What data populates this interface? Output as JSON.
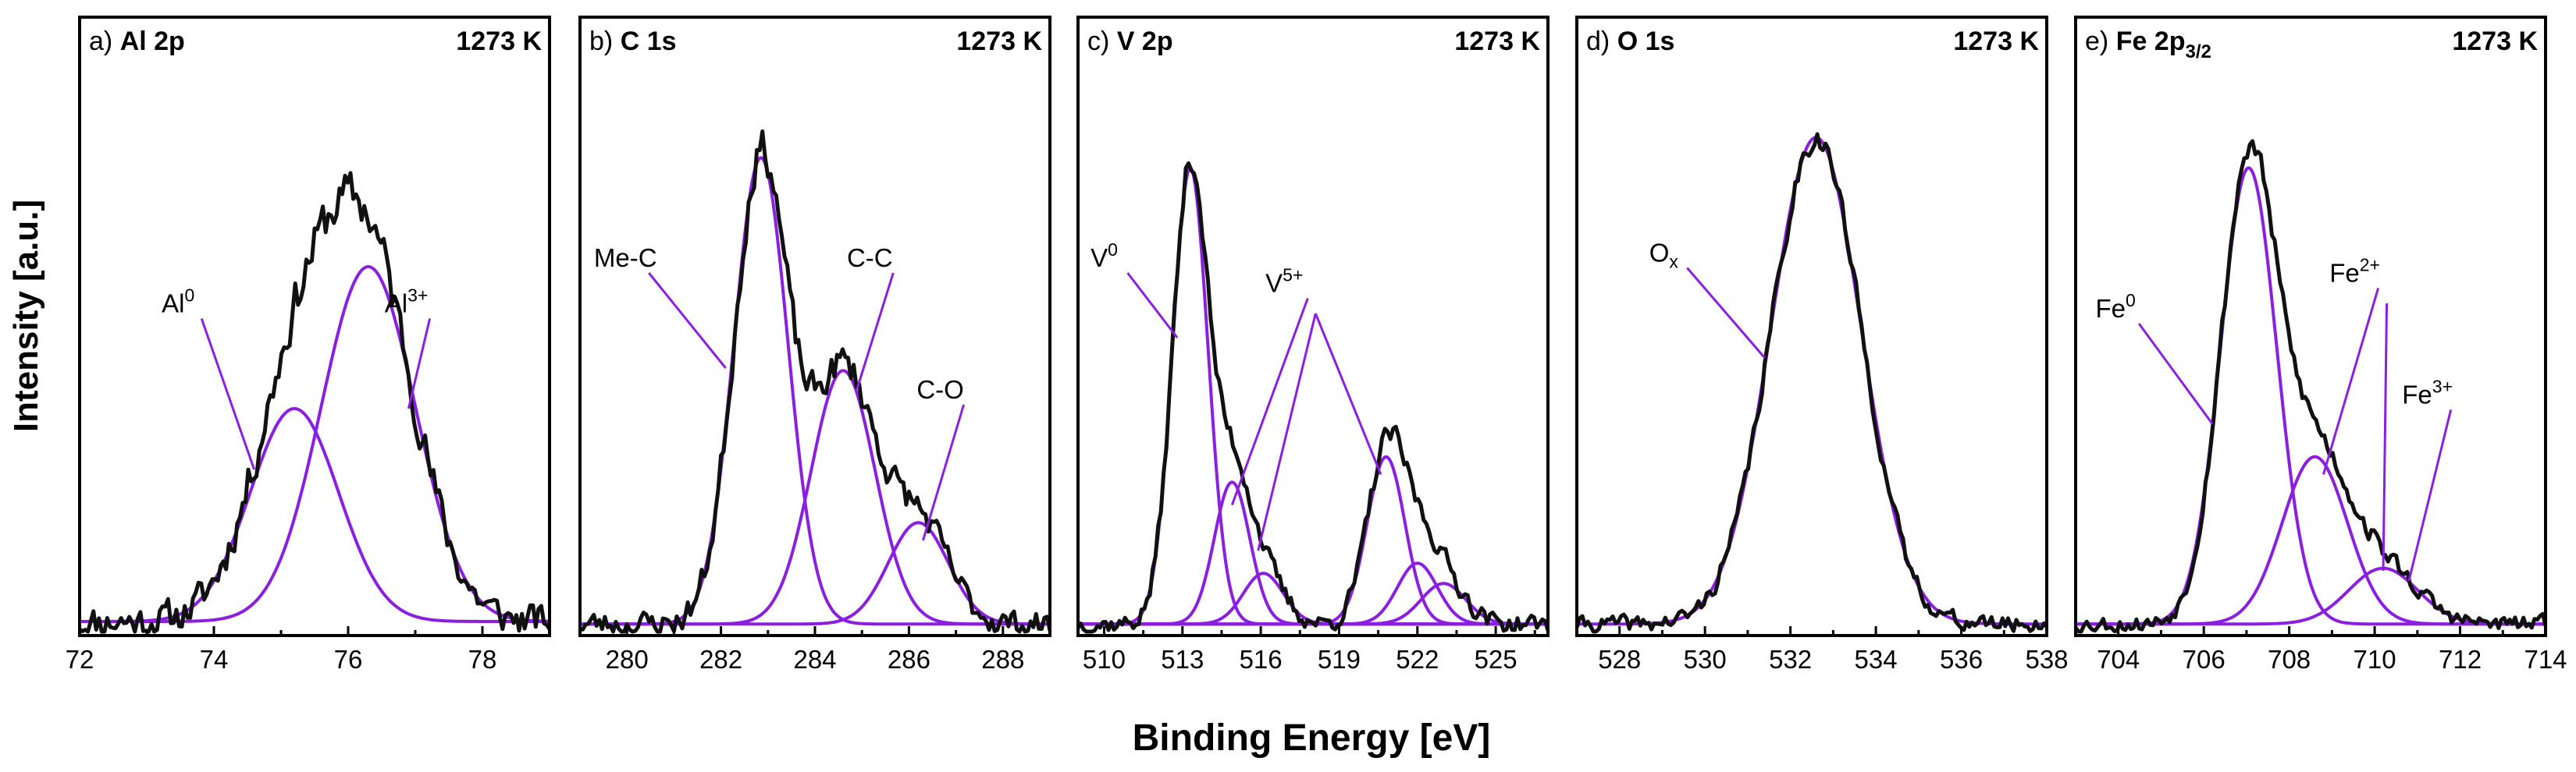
{
  "chart_data": {
    "type": "line",
    "xlabel": "Binding Energy [eV]",
    "ylabel": "Intensity [a.u.]",
    "series_colors": {
      "raw": "#111111",
      "fit": "#8a1fe0"
    },
    "panels": [
      {
        "id": "a",
        "label_prefix": "a)",
        "label_main": "Al 2p",
        "label_sub": "",
        "temperature": "1273 K",
        "xlim": [
          72,
          79
        ],
        "ylim": [
          0,
          1.0
        ],
        "xticks": [
          72,
          74,
          76,
          78
        ],
        "xtick_labels": [
          "72",
          "74",
          "76",
          "78"
        ],
        "noise_seed": 11,
        "noise_amp": 0.045,
        "baseline": 0.02,
        "components": [
          {
            "name": "Al",
            "sup": "0",
            "center": 75.2,
            "height": 0.42,
            "fwhm": 1.55
          },
          {
            "name": "Al",
            "sup": "3+",
            "center": 76.3,
            "height": 0.7,
            "fwhm": 1.65
          }
        ],
        "annotations": [
          {
            "name": "Al",
            "sup": "0",
            "text_x": 73.7,
            "text_y": 0.63,
            "target": [
              74.6,
              0.32
            ]
          },
          {
            "name": "Al",
            "sup": "3+",
            "text_x": 77.1,
            "text_y": 0.63,
            "target": [
              76.9,
              0.44
            ]
          }
        ]
      },
      {
        "id": "b",
        "label_prefix": "b)",
        "label_main": "C 1s",
        "label_sub": "",
        "temperature": "1273 K",
        "xlim": [
          279,
          289
        ],
        "ylim": [
          0,
          1.0
        ],
        "xticks": [
          280,
          282,
          284,
          286,
          288
        ],
        "xtick_labels": [
          "280",
          "282",
          "284",
          "286",
          "288"
        ],
        "noise_seed": 23,
        "noise_amp": 0.035,
        "baseline": 0.015,
        "components": [
          {
            "name": "Me-C",
            "sup": "",
            "center": 282.85,
            "height": 0.92,
            "fwhm": 1.35
          },
          {
            "name": "C-C",
            "sup": "",
            "center": 284.6,
            "height": 0.5,
            "fwhm": 1.6
          },
          {
            "name": "C-O",
            "sup": "",
            "center": 286.2,
            "height": 0.2,
            "fwhm": 1.5
          }
        ],
        "annotations": [
          {
            "name": "Me-C",
            "sup": "",
            "text_x": 280.3,
            "text_y": 0.72,
            "target": [
              282.1,
              0.52
            ]
          },
          {
            "name": "C-C",
            "sup": "",
            "text_x": 285.5,
            "text_y": 0.72,
            "target": [
              284.9,
              0.48
            ]
          },
          {
            "name": "C-O",
            "sup": "",
            "text_x": 287.0,
            "text_y": 0.46,
            "target": [
              286.3,
              0.18
            ]
          }
        ]
      },
      {
        "id": "c",
        "label_prefix": "c)",
        "label_main": "V 2p",
        "label_sub": "",
        "temperature": "1273 K",
        "xlim": [
          509,
          527
        ],
        "ylim": [
          0,
          1.0
        ],
        "xticks": [
          510,
          513,
          516,
          519,
          522,
          525
        ],
        "xtick_labels": [
          "510",
          "513",
          "516",
          "519",
          "522",
          "525"
        ],
        "noise_seed": 37,
        "noise_amp": 0.025,
        "baseline": 0.015,
        "components": [
          {
            "name": "V",
            "sup": "0",
            "center": 513.3,
            "height": 0.9,
            "fwhm": 1.6
          },
          {
            "name": "V",
            "sup": "5+",
            "center": 514.9,
            "height": 0.28,
            "fwhm": 1.6
          },
          {
            "name": "V",
            "sup": "5+",
            "center": 516.1,
            "height": 0.1,
            "fwhm": 1.8
          },
          {
            "name": "V",
            "sup": "",
            "center": 520.8,
            "height": 0.33,
            "fwhm": 1.7
          },
          {
            "name": "V",
            "sup": "",
            "center": 522.0,
            "height": 0.12,
            "fwhm": 1.8
          },
          {
            "name": "V",
            "sup": "",
            "center": 523.0,
            "height": 0.08,
            "fwhm": 2.0
          }
        ],
        "annotations": [
          {
            "name": "V",
            "sup": "0",
            "text_x": 510.6,
            "text_y": 0.72,
            "target": [
              512.8,
              0.58
            ]
          },
          {
            "name": "V",
            "sup": "5+",
            "text_x": 517.5,
            "text_y": 0.67,
            "target": [
              514.9,
              0.25
            ]
          },
          {
            "name": "",
            "sup": "",
            "text_x": 517.8,
            "text_y": 0.64,
            "target": [
              515.9,
              0.16
            ]
          },
          {
            "name": "",
            "sup": "",
            "text_x": 517.8,
            "text_y": 0.64,
            "target": [
              520.6,
              0.31
            ]
          }
        ]
      },
      {
        "id": "d",
        "label_prefix": "d)",
        "label_main": "O 1s",
        "label_sub": "",
        "temperature": "1273 K",
        "xlim": [
          527,
          538
        ],
        "ylim": [
          0,
          1.0
        ],
        "xticks": [
          528,
          530,
          532,
          534,
          536,
          538
        ],
        "xtick_labels": [
          "528",
          "530",
          "532",
          "534",
          "536",
          "538"
        ],
        "noise_seed": 41,
        "noise_amp": 0.022,
        "baseline": 0.015,
        "components": [
          {
            "name": "O",
            "sup": "x",
            "center": 532.6,
            "height": 0.96,
            "fwhm": 2.5
          }
        ],
        "annotations": [
          {
            "name": "O",
            "sup": "x",
            "text_x": 529.4,
            "text_y": 0.73,
            "sub": true,
            "target": [
              531.4,
              0.54
            ]
          }
        ]
      },
      {
        "id": "e",
        "label_prefix": "e)",
        "label_main": "Fe 2p",
        "label_sub": "3/2",
        "temperature": "1273 K",
        "xlim": [
          703,
          714
        ],
        "ylim": [
          0,
          1.0
        ],
        "xticks": [
          704,
          706,
          708,
          710,
          712,
          714
        ],
        "xtick_labels": [
          "704",
          "706",
          "708",
          "710",
          "712",
          "714"
        ],
        "noise_seed": 53,
        "noise_amp": 0.022,
        "baseline": 0.015,
        "components": [
          {
            "name": "Fe",
            "sup": "0",
            "center": 707.05,
            "height": 0.9,
            "fwhm": 1.55
          },
          {
            "name": "Fe",
            "sup": "2+",
            "center": 708.6,
            "height": 0.33,
            "fwhm": 1.8
          },
          {
            "name": "Fe",
            "sup": "3+",
            "center": 710.2,
            "height": 0.11,
            "fwhm": 1.9
          }
        ],
        "annotations": [
          {
            "name": "Fe",
            "sup": "0",
            "text_x": 704.3,
            "text_y": 0.62,
            "target": [
              706.2,
              0.41
            ]
          },
          {
            "name": "Fe",
            "sup": "2+",
            "text_x": 709.9,
            "text_y": 0.69,
            "target": [
              708.8,
              0.31
            ]
          },
          {
            "name": "",
            "sup": "",
            "text_x": 710.1,
            "text_y": 0.66,
            "target": [
              710.2,
              0.12
            ]
          },
          {
            "name": "Fe",
            "sup": "3+",
            "text_x": 711.6,
            "text_y": 0.45,
            "target": [
              710.8,
              0.1
            ]
          }
        ]
      }
    ]
  }
}
